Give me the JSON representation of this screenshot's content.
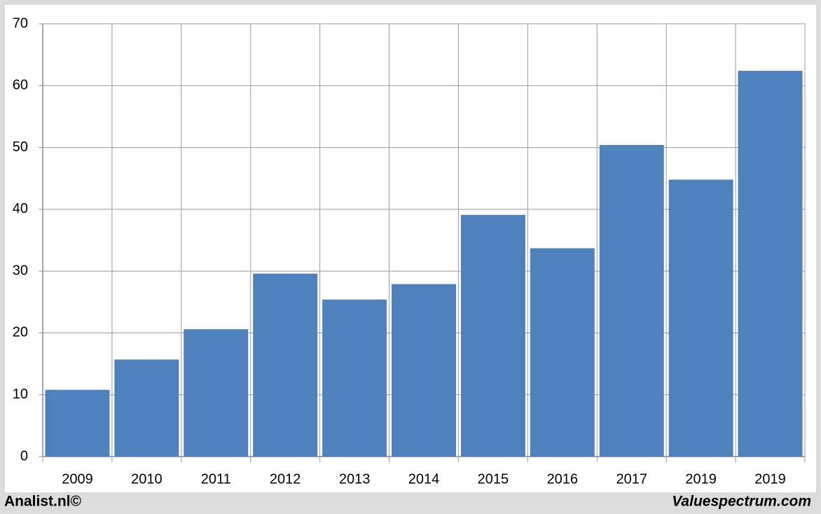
{
  "chart_data": {
    "type": "bar",
    "categories": [
      "2009",
      "2010",
      "2011",
      "2012",
      "2013",
      "2014",
      "2015",
      "2016",
      "2017",
      "2019",
      "2019"
    ],
    "values": [
      10.8,
      15.7,
      20.6,
      29.6,
      25.4,
      27.9,
      39.1,
      33.7,
      50.4,
      44.8,
      62.4
    ],
    "color": "#4f81bd",
    "ylim": [
      0,
      70
    ],
    "yticks": [
      0,
      10,
      20,
      30,
      40,
      50,
      60,
      70
    ],
    "grid": true
  },
  "footer": {
    "left": "Analist.nl©",
    "right": "Valuespectrum.com"
  }
}
